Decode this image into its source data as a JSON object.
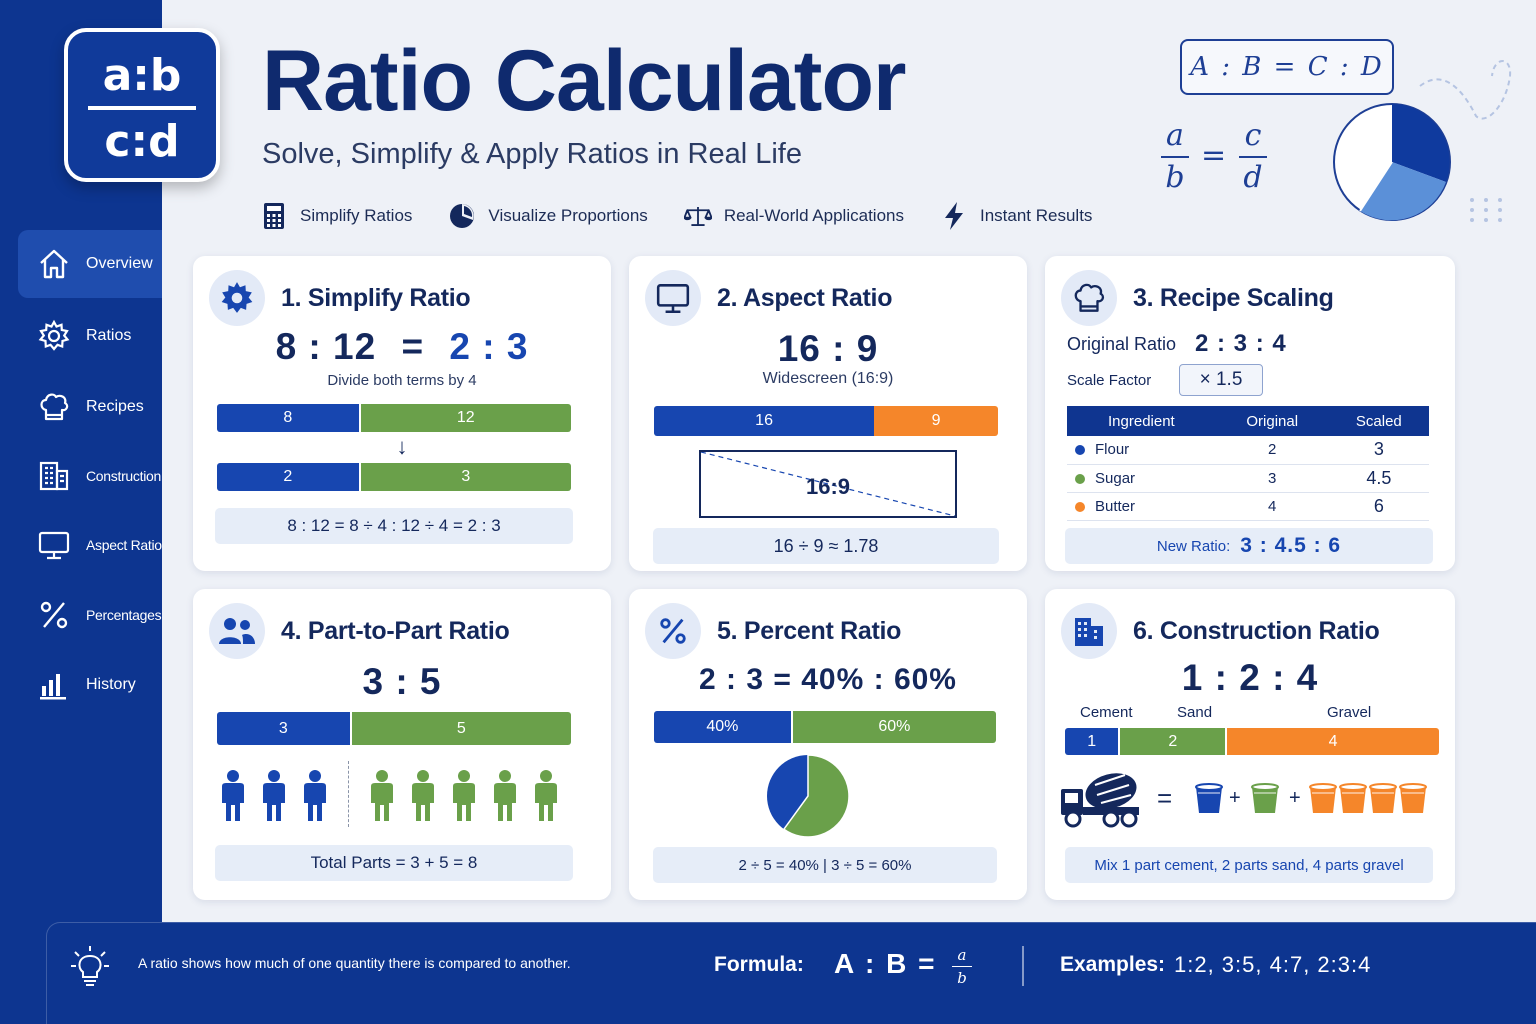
{
  "app": {
    "logo_top": "a:b",
    "logo_bottom": "c:d",
    "title": "Ratio Calculator",
    "subtitle": "Solve, Simplify & Apply Ratios in Real Life"
  },
  "features": [
    {
      "label": "Simplify Ratios",
      "icon": "calculator-icon"
    },
    {
      "label": "Visualize Proportions",
      "icon": "pie-chart-icon"
    },
    {
      "label": "Real-World Applications",
      "icon": "scale-icon"
    },
    {
      "label": "Instant Results",
      "icon": "lightning-icon"
    }
  ],
  "header_formula": {
    "box": "A : B = C : D",
    "a": "a",
    "b": "b",
    "c": "c",
    "d": "d",
    "eq": "="
  },
  "sidebar": {
    "items": [
      {
        "label": "Overview",
        "icon": "home-icon",
        "active": true
      },
      {
        "label": "Ratios",
        "icon": "gear-icon"
      },
      {
        "label": "Recipes",
        "icon": "chef-hat-icon"
      },
      {
        "label": "Construction",
        "icon": "building-icon"
      },
      {
        "label": "Aspect Ratio",
        "icon": "monitor-icon"
      },
      {
        "label": "Percentages",
        "icon": "percent-icon"
      },
      {
        "label": "History",
        "icon": "bar-chart-icon"
      }
    ]
  },
  "cards": {
    "simplify": {
      "title": "1. Simplify Ratio",
      "left": "8 : 12",
      "eq": "=",
      "right": "2 : 3",
      "hint": "Divide both terms by 4",
      "bar1": [
        {
          "label": "8",
          "value": 8
        },
        {
          "label": "12",
          "value": 12
        }
      ],
      "arrow": "↓",
      "bar2": [
        {
          "label": "2",
          "value": 2
        },
        {
          "label": "3",
          "value": 3
        }
      ],
      "formula": "8 : 12  =  8 ÷ 4  :  12 ÷ 4  =  2 : 3"
    },
    "aspect": {
      "title": "2. Aspect Ratio",
      "ratio": "16 : 9",
      "hint": "Widescreen (16:9)",
      "bar": [
        {
          "label": "16",
          "value": 16
        },
        {
          "label": "9",
          "value": 9
        }
      ],
      "screen_label": "16:9",
      "formula": "16 ÷ 9  ≈  1.78"
    },
    "recipe": {
      "title": "3. Recipe Scaling",
      "original_label": "Original Ratio",
      "original_value": "2 : 3 : 4",
      "scale_label": "Scale Factor",
      "scale_value": "×  1.5",
      "headers": [
        "Ingredient",
        "Original",
        "Scaled"
      ],
      "rows": [
        {
          "name": "Flour",
          "original": "2",
          "scaled": "3",
          "color": "#1746b0"
        },
        {
          "name": "Sugar",
          "original": "3",
          "scaled": "4.5",
          "color": "#6aa04a"
        },
        {
          "name": "Butter",
          "original": "4",
          "scaled": "6",
          "color": "#f5862a"
        }
      ],
      "new_label": "New Ratio:",
      "new_value": "3 : 4.5 : 6"
    },
    "part": {
      "title": "4. Part-to-Part Ratio",
      "ratio": "3 : 5",
      "bar": [
        {
          "label": "3",
          "value": 3
        },
        {
          "label": "5",
          "value": 5
        }
      ],
      "people_a": 3,
      "people_b": 5,
      "formula": "Total Parts  =  3  +  5  =  8"
    },
    "percent": {
      "title": "5. Percent Ratio",
      "ratio": "2 : 3  =  40% : 60%",
      "bar": [
        {
          "label": "40%",
          "value": 40
        },
        {
          "label": "60%",
          "value": 60
        }
      ],
      "pie": [
        40,
        60
      ],
      "formula": "2  ÷  5  =  40%   |   3  ÷  5  =  60%"
    },
    "construction": {
      "title": "6. Construction Ratio",
      "ratio": "1 : 2 : 4",
      "labels": [
        "Cement",
        "Sand",
        "Gravel"
      ],
      "bar": [
        {
          "label": "1",
          "value": 1
        },
        {
          "label": "2",
          "value": 2
        },
        {
          "label": "4",
          "value": 4
        }
      ],
      "eq": "=",
      "plus": "+",
      "formula": "Mix 1 part cement, 2 parts sand, 4 parts gravel"
    }
  },
  "footer": {
    "note": "A ratio shows how much of one quantity there is compared to another.",
    "formula_label": "Formula:",
    "formula": "A : B  =",
    "frac_num": "a",
    "frac_den": "b",
    "examples_label": "Examples:",
    "examples": "1:2,  3:5,  4:7,  2:3:4"
  },
  "colors": {
    "primary": "#0d3590",
    "blue": "#1746b0",
    "green": "#6aa04a",
    "orange": "#f5862a"
  }
}
